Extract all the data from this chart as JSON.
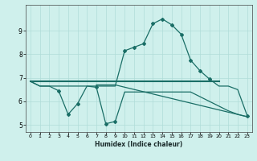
{
  "xlabel": "Humidex (Indice chaleur)",
  "xlim": [
    -0.5,
    23.5
  ],
  "ylim": [
    4.7,
    10.1
  ],
  "xticks": [
    0,
    1,
    2,
    3,
    4,
    5,
    6,
    7,
    8,
    9,
    10,
    11,
    12,
    13,
    14,
    15,
    16,
    17,
    18,
    19,
    20,
    21,
    22,
    23
  ],
  "yticks": [
    5,
    6,
    7,
    8,
    9
  ],
  "bg_color": "#cff0ec",
  "line_color": "#1a6e66",
  "line1_x": [
    0,
    1,
    2,
    3,
    4,
    5,
    6,
    7,
    8,
    9,
    10,
    11,
    12,
    13,
    14,
    15,
    16,
    17,
    18,
    19,
    20,
    21,
    22,
    23
  ],
  "line1_y": [
    6.85,
    6.65,
    6.65,
    6.65,
    6.65,
    6.65,
    6.65,
    6.65,
    6.65,
    6.65,
    8.15,
    8.3,
    8.45,
    9.3,
    9.5,
    9.25,
    8.85,
    7.75,
    7.3,
    6.95,
    6.65,
    6.65,
    6.5,
    5.4
  ],
  "line2_x": [
    0,
    1,
    2,
    3,
    4,
    5,
    6,
    7,
    8,
    9,
    10,
    11,
    12,
    13,
    14,
    15,
    16,
    17,
    18,
    19,
    20,
    21,
    22,
    23
  ],
  "line2_y": [
    6.85,
    6.65,
    6.65,
    6.45,
    5.45,
    5.9,
    6.65,
    6.6,
    5.05,
    5.15,
    6.4,
    6.4,
    6.4,
    6.4,
    6.4,
    6.4,
    6.4,
    6.4,
    6.2,
    6.0,
    5.8,
    5.6,
    5.45,
    5.35
  ],
  "line3_x": [
    0,
    20
  ],
  "line3_y": [
    6.85,
    6.85
  ],
  "line4_x": [
    7,
    9,
    23
  ],
  "line4_y": [
    6.7,
    6.7,
    5.35
  ]
}
